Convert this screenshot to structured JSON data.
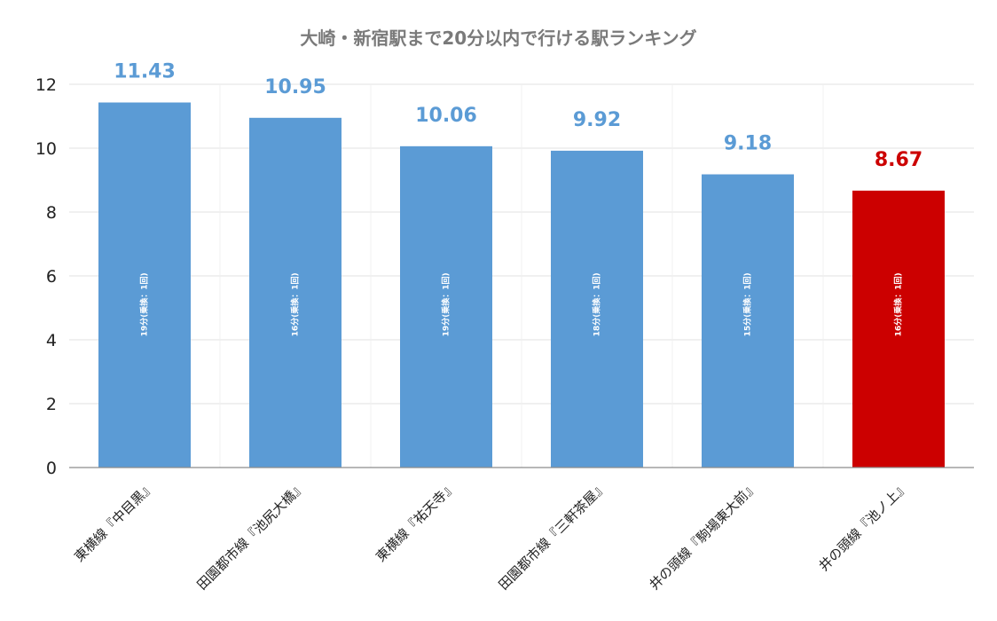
{
  "chart_data": {
    "type": "bar",
    "title": "大崎・新宿駅まで20分以内で行ける駅ランキング",
    "xlabel": "",
    "ylabel": "",
    "ylim": [
      0,
      12
    ],
    "yticks": [
      0,
      2,
      4,
      6,
      8,
      10,
      12
    ],
    "grid": true,
    "categories": [
      "東横線『中目黒』",
      "田園都市線『池尻大橋』",
      "東横線『祐天寺』",
      "田園都市線『三軒茶屋』",
      "井の頭線『駒場東大前』",
      "井の頭線『池ノ上』"
    ],
    "values": [
      11.43,
      10.95,
      10.06,
      9.92,
      9.18,
      8.67
    ],
    "value_labels": [
      "11.43",
      "10.95",
      "10.06",
      "9.92",
      "9.18",
      "8.67"
    ],
    "inner_labels": [
      "19分(乗換：1回)",
      "16分(乗換：1回)",
      "19分(乗換：1回)",
      "18分(乗換：1回)",
      "15分(乗換：1回)",
      "16分(乗換：1回)"
    ],
    "colors": {
      "default_bar": "#5b9bd5",
      "highlight_bar": "#cc0000",
      "default_label": "#5b9bd5",
      "highlight_label": "#cc0000",
      "grid": "#e0e0e0",
      "axis": "#8c8c8c"
    },
    "highlight_index": 5
  }
}
